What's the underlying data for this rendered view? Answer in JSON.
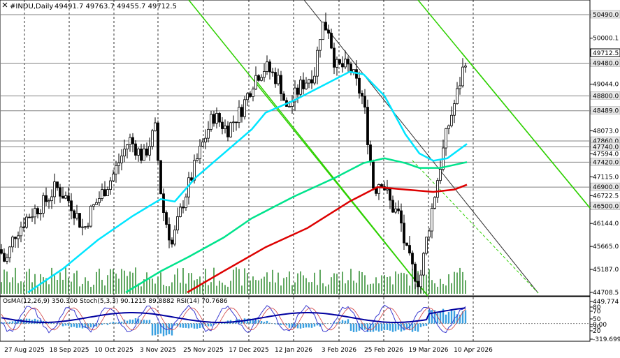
{
  "chart_data": {
    "type": "candlestick",
    "symbol": "#INDU,Daily",
    "ohlc_header": "49491.7 49763.7 49455.7 49712.5",
    "current_price": "49712.5",
    "price_axis_ticks": [
      "50490.0",
      "50000.1",
      "49712.5",
      "49480.0",
      "49044.0",
      "48800.0",
      "48489.0",
      "48073.0",
      "47860.0",
      "47740.0",
      "47594.0",
      "47420.0",
      "47115.0",
      "46900.0",
      "46722.5",
      "46500.0",
      "46144.0",
      "45665.0",
      "45187.0",
      "44708.5"
    ],
    "key_levels": [
      "50490.0",
      "49480.0",
      "48800.0",
      "48489.0",
      "47860.0",
      "47740.0",
      "47420.0",
      "46900.0",
      "46500.0"
    ],
    "ylim": [
      44708.5,
      51100
    ],
    "date_labels": [
      "27 Aug 2025",
      "18 Sep 2025",
      "10 Oct 2025",
      "3 Nov 2025",
      "25 Nov 2025",
      "17 Dec 2025",
      "12 Jan 2026",
      "3 Feb 2026",
      "25 Feb 2026",
      "19 Mar 2026",
      "10 Apr 2026"
    ],
    "ma_colors": {
      "fast": "#00e5ff",
      "mid": "#00e38c",
      "slow": "#dd0000"
    },
    "channel_color": "#2ed000",
    "indicator_header": "OsMA(12,26,9) 350.300   Stoch(5,3,3) 90.1215 89.8882   RSI(14) 70.7686",
    "indicator_ticks": [
      "449.774",
      "80",
      "70",
      "50",
      "30",
      "20",
      "0.00",
      "-319.699"
    ],
    "indicator_ylim": [
      -319.699,
      449.774
    ]
  }
}
